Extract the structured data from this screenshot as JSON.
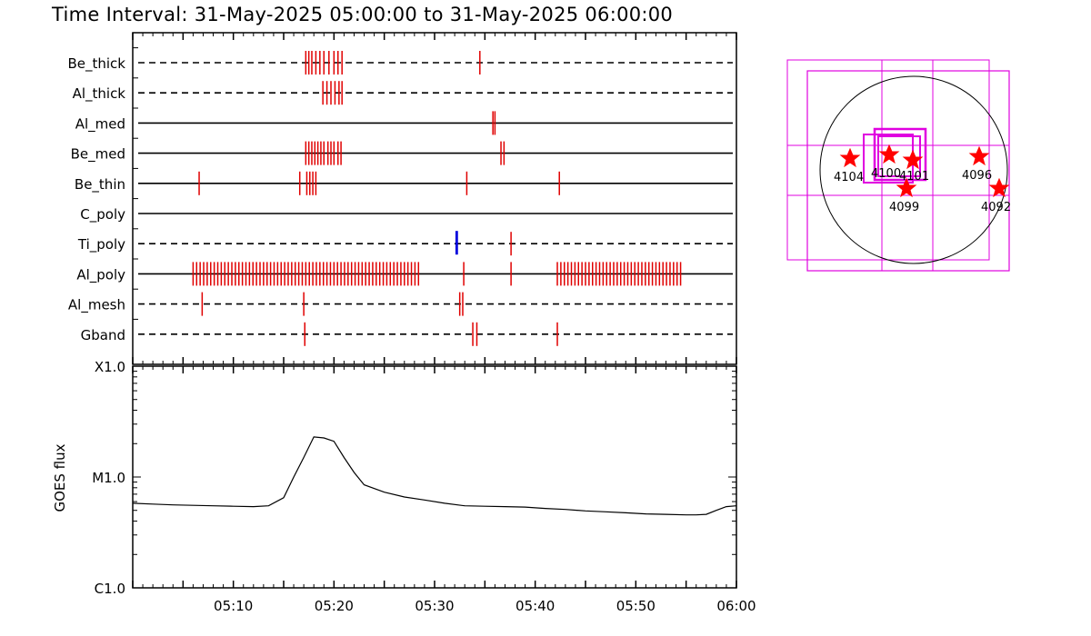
{
  "header": {
    "title": "Time Interval: 31-May-2025 05:00:00 to 31-May-2025 06:00:00"
  },
  "chart_data": [
    {
      "type": "scatter",
      "subtype": "event-timeline",
      "x_unit": "minutes after 05:00",
      "xlim": [
        0,
        60
      ],
      "channels": [
        {
          "name": "Be_thick",
          "line": "dashed",
          "events": [
            17.2,
            17.5,
            17.8,
            18.2,
            18.6,
            19.0,
            19.5,
            20.0,
            20.4,
            20.8,
            34.5
          ]
        },
        {
          "name": "Al_thick",
          "line": "dashed",
          "events": [
            18.9,
            19.3,
            19.7,
            20.1,
            20.5,
            20.8
          ]
        },
        {
          "name": "Al_med",
          "line": "solid",
          "events": [
            35.8,
            36.0
          ]
        },
        {
          "name": "Be_med",
          "line": "solid",
          "events": [
            17.2,
            17.5,
            17.8,
            18.1,
            18.4,
            18.7,
            19.0,
            19.4,
            19.7,
            20.0,
            20.4,
            20.7,
            36.6,
            36.9
          ]
        },
        {
          "name": "Be_thin",
          "line": "solid",
          "events": [
            6.6,
            16.6,
            17.3,
            17.6,
            17.9,
            18.2,
            33.2,
            42.4
          ]
        },
        {
          "name": "C_poly",
          "line": "solid",
          "events": []
        },
        {
          "name": "Ti_poly",
          "line": "dashed",
          "events": [
            37.6
          ],
          "blue_events": [
            32.2
          ]
        },
        {
          "name": "Al_poly",
          "line": "solid",
          "events": [
            6.0,
            6.35,
            6.7,
            7.05,
            7.4,
            7.75,
            8.1,
            8.45,
            8.8,
            9.15,
            9.5,
            9.85,
            10.2,
            10.55,
            10.9,
            11.25,
            11.6,
            11.95,
            12.3,
            12.65,
            13.0,
            13.35,
            13.7,
            14.05,
            14.4,
            14.75,
            15.1,
            15.45,
            15.8,
            16.15,
            16.5,
            16.85,
            17.2,
            17.55,
            17.9,
            18.25,
            18.6,
            18.95,
            19.3,
            19.65,
            20.0,
            20.35,
            20.7,
            21.05,
            21.4,
            21.75,
            22.1,
            22.45,
            22.8,
            23.15,
            23.5,
            23.85,
            24.2,
            24.55,
            24.9,
            25.25,
            25.6,
            25.95,
            26.3,
            26.65,
            27.0,
            27.35,
            27.7,
            28.05,
            28.4,
            32.9,
            37.6,
            42.2,
            42.55,
            42.9,
            43.25,
            43.6,
            43.95,
            44.3,
            44.65,
            45.0,
            45.35,
            45.7,
            46.05,
            46.4,
            46.75,
            47.1,
            47.45,
            47.8,
            48.15,
            48.5,
            48.85,
            49.2,
            49.55,
            49.9,
            50.25,
            50.6,
            50.95,
            51.3,
            51.65,
            52.0,
            52.35,
            52.7,
            53.05,
            53.4,
            53.75,
            54.1,
            54.45
          ]
        },
        {
          "name": "Al_mesh",
          "line": "dashed",
          "events": [
            6.9,
            17.0,
            32.5,
            32.8
          ]
        },
        {
          "name": "Gband",
          "line": "dashed",
          "events": [
            17.1,
            33.8,
            34.2,
            42.2
          ]
        }
      ]
    },
    {
      "type": "line",
      "ylabel": "GOES flux",
      "yscale": "log",
      "ytick_labels": [
        "C1.0",
        "M1.0",
        "X1.0"
      ],
      "ytick_values": [
        1e-06,
        1e-05,
        0.0001
      ],
      "ylim": [
        1e-06,
        0.0001
      ],
      "xlim": [
        0,
        60
      ],
      "x_unit": "minutes after 05:00",
      "xtick_labels": [
        "05:10",
        "05:20",
        "05:30",
        "05:40",
        "05:50",
        "06:00"
      ],
      "xtick_values": [
        10,
        20,
        30,
        40,
        50,
        60
      ],
      "series": [
        {
          "x": [
            0,
            2,
            4,
            6,
            8,
            10,
            12,
            13.5,
            15,
            16,
            17,
            18,
            19,
            20,
            21,
            22,
            23,
            25,
            27,
            29,
            31,
            33,
            35,
            37,
            39,
            41,
            43,
            45,
            47,
            49,
            51,
            53,
            55,
            56,
            57,
            58,
            59,
            60
          ],
          "y": [
            5.8e-06,
            5.7e-06,
            5.6e-06,
            5.55e-06,
            5.5e-06,
            5.45e-06,
            5.4e-06,
            5.5e-06,
            6.5e-06,
            1e-05,
            1.5e-05,
            2.3e-05,
            2.25e-05,
            2.1e-05,
            1.5e-05,
            1.1e-05,
            8.5e-06,
            7.3e-06,
            6.6e-06,
            6.2e-06,
            5.8e-06,
            5.5e-06,
            5.45e-06,
            5.4e-06,
            5.35e-06,
            5.2e-06,
            5.1e-06,
            4.95e-06,
            4.85e-06,
            4.75e-06,
            4.65e-06,
            4.6e-06,
            4.55e-06,
            4.55e-06,
            4.6e-06,
            5e-06,
            5.4e-06,
            5.5e-06
          ]
        }
      ]
    }
  ],
  "aia_map": {
    "active_regions": [
      {
        "label": "4104"
      },
      {
        "label": "4100"
      },
      {
        "label": "4101"
      },
      {
        "label": "4096"
      },
      {
        "label": "4099"
      },
      {
        "label": "4092"
      }
    ]
  }
}
